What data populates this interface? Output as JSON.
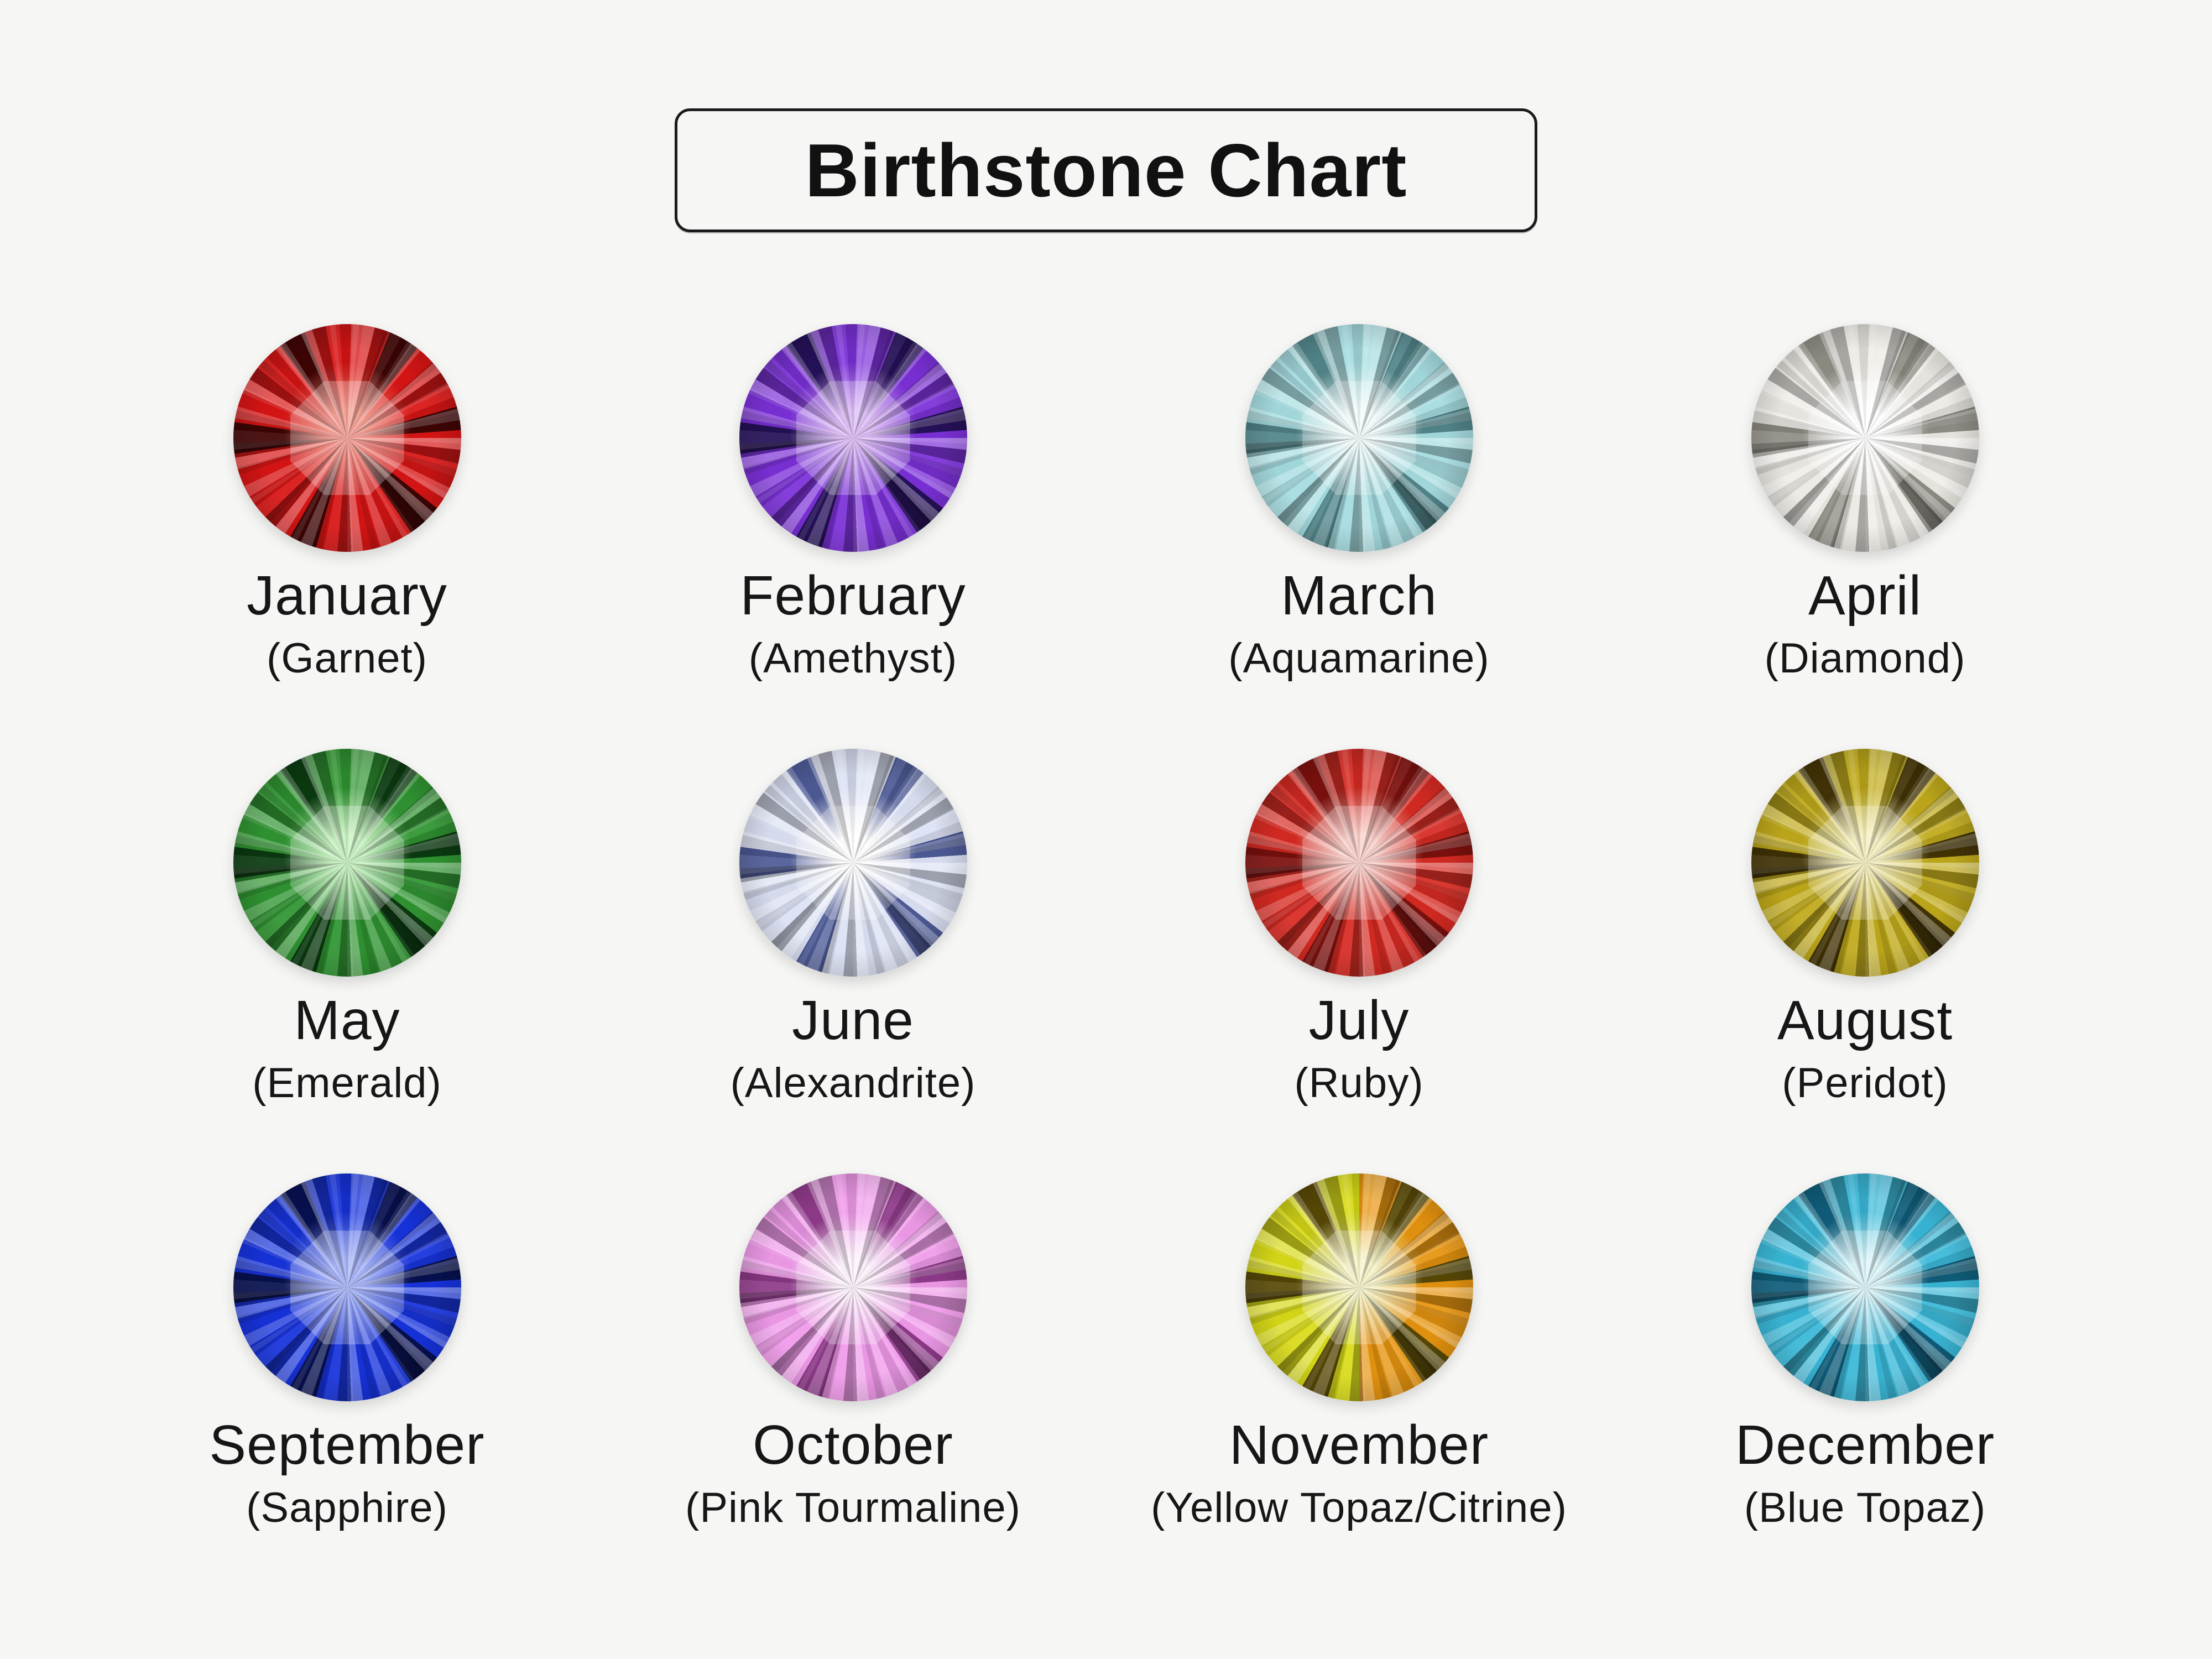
{
  "colors": {
    "background": "#f6f6f5",
    "text": "#1a1a1a",
    "box_border": "#1b1b1b"
  },
  "header": {
    "title": "Birthstone Chart"
  },
  "months": [
    {
      "month": "January",
      "stone_label": "(Garnet)",
      "colors": {
        "light": "#f07a6a",
        "mid": "#d81414",
        "dark": "#3f0404"
      }
    },
    {
      "month": "February",
      "stone_label": "(Amethyst)",
      "colors": {
        "light": "#cfa4f2",
        "mid": "#7b30d8",
        "dark": "#251058"
      }
    },
    {
      "month": "March",
      "stone_label": "(Aquamarine)",
      "colors": {
        "light": "#eefafa",
        "mid": "#a5dce0",
        "dark": "#51858a"
      }
    },
    {
      "month": "April",
      "stone_label": "(Diamond)",
      "colors": {
        "light": "#ffffff",
        "mid": "#eceae4",
        "dark": "#8f8d84"
      }
    },
    {
      "month": "May",
      "stone_label": "(Emerald)",
      "colors": {
        "light": "#b2ecaa",
        "mid": "#2f9431",
        "dark": "#0a3a0f"
      }
    },
    {
      "month": "June",
      "stone_label": "(Alexandrite)",
      "colors": {
        "light": "#ffffff",
        "mid": "#dce1f4",
        "dark": "#4d5a96"
      }
    },
    {
      "month": "July",
      "stone_label": "(Ruby)",
      "colors": {
        "light": "#f6beb6",
        "mid": "#d62a22",
        "dark": "#7c100d"
      }
    },
    {
      "month": "August",
      "stone_label": "(Peridot)",
      "colors": {
        "light": "#f0e9a6",
        "mid": "#bfa91a",
        "dark": "#423305"
      }
    },
    {
      "month": "September",
      "stone_label": "(Sapphire)",
      "colors": {
        "light": "#8496f4",
        "mid": "#1632dc",
        "dark": "#071050"
      }
    },
    {
      "month": "October",
      "stone_label": "(Pink Tourmaline)",
      "colors": {
        "light": "#fdeefc",
        "mid": "#f09aea",
        "dark": "#8f3a8a"
      }
    },
    {
      "month": "November",
      "stone_label": "(Yellow Topaz/Citrine)",
      "colors": {
        "light": "#f2efb4",
        "mid": "#d8da18",
        "mid2": "#e6940e",
        "dark": "#584806"
      }
    },
    {
      "month": "December",
      "stone_label": "(Blue Topaz)",
      "colors": {
        "light": "#cdf0f5",
        "mid": "#3ab8d8",
        "dark": "#0f5d7a"
      }
    }
  ]
}
